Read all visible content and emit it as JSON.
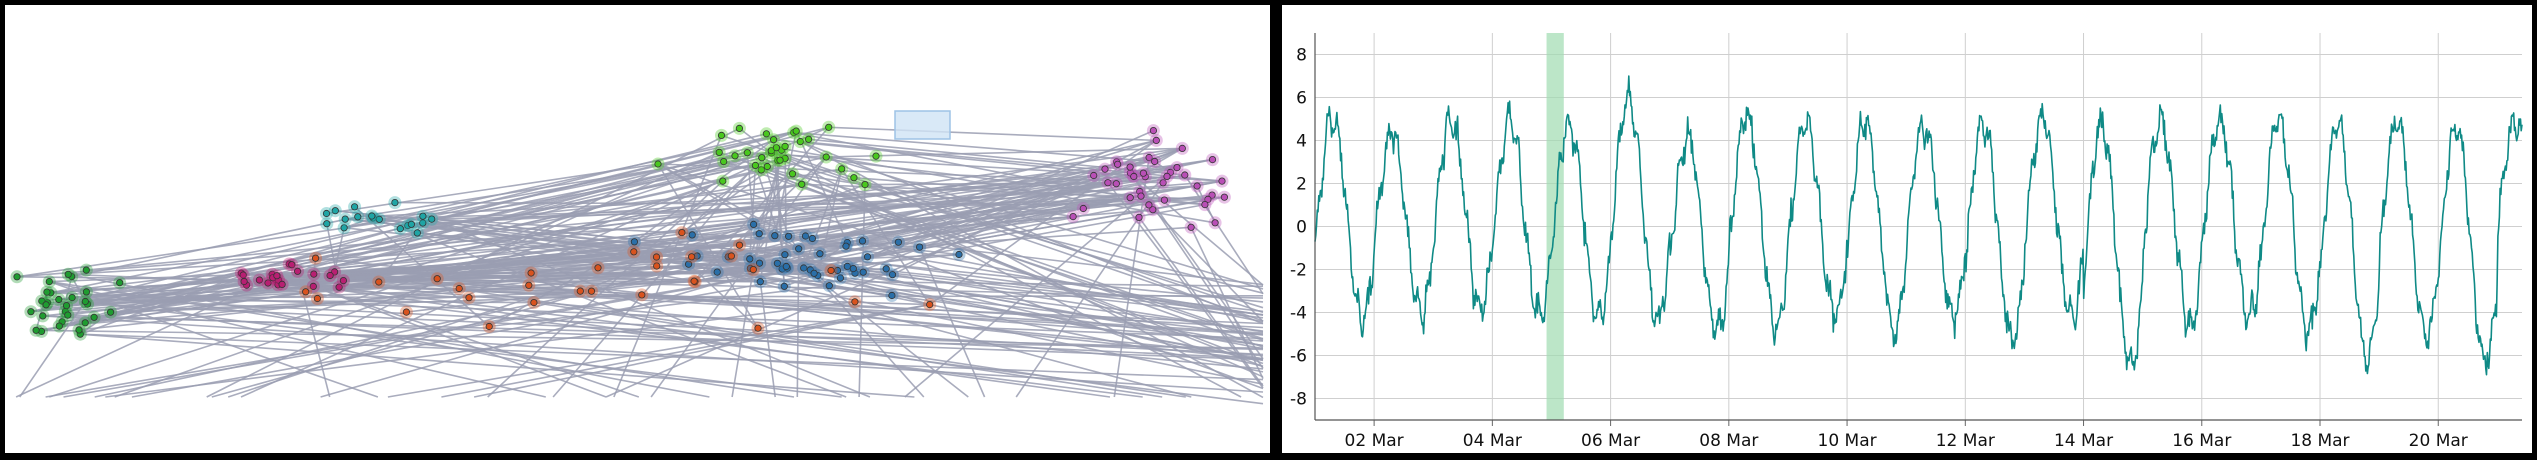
{
  "colors": {
    "edge": "#9a9db2",
    "cluster_green_bright": "#49c81e",
    "cluster_green_dark": "#1f9c30",
    "cluster_teal": "#1fa5a5",
    "cluster_blue": "#2a6fa8",
    "cluster_purple": "#b94fb6",
    "cluster_magenta": "#b81f72",
    "cluster_orange": "#d9531e",
    "series": "#0f8a86",
    "highlight": "#9fdcb0",
    "grid": "#cfcfcf",
    "selection_box": "#cfe3f5"
  },
  "network": {
    "node_icon": "circle-node",
    "clusters": [
      "green-bright",
      "green-dark",
      "teal",
      "blue",
      "purple",
      "magenta",
      "orange"
    ]
  },
  "chart_data": {
    "type": "line",
    "title": "",
    "xlabel": "",
    "ylabel": "",
    "x_ticks": [
      "02 Mar",
      "04 Mar",
      "06 Mar",
      "08 Mar",
      "10 Mar",
      "12 Mar",
      "14 Mar",
      "16 Mar",
      "18 Mar",
      "20 Mar"
    ],
    "x_range": [
      "2024-03-01",
      "2024-03-21 10:00"
    ],
    "ylim": [
      -9,
      9
    ],
    "y_ticks": [
      8,
      6,
      4,
      2,
      0,
      -2,
      -4,
      -6,
      -8
    ],
    "grid": true,
    "period_days": 1,
    "highlight_range": [
      "2024-03-04 22:00",
      "2024-03-05 05:00"
    ],
    "series": [
      {
        "x": [
          "2024-03-01 00:00",
          "2024-03-01 12:00",
          "2024-03-02 00:00",
          "2024-03-02 12:00",
          "2024-03-03 00:00",
          "2024-03-03 12:00",
          "2024-03-04 00:00",
          "2024-03-04 12:00",
          "2024-03-05 00:00",
          "2024-03-05 12:00",
          "2024-03-06 00:00",
          "2024-03-06 12:00",
          "2024-03-07 00:00",
          "2024-03-07 12:00",
          "2024-03-08 00:00",
          "2024-03-08 12:00",
          "2024-03-09 00:00",
          "2024-03-09 12:00",
          "2024-03-10 00:00",
          "2024-03-10 12:00",
          "2024-03-11 00:00",
          "2024-03-11 12:00",
          "2024-03-12 00:00",
          "2024-03-12 12:00",
          "2024-03-13 00:00",
          "2024-03-13 12:00",
          "2024-03-14 00:00",
          "2024-03-14 12:00",
          "2024-03-15 00:00",
          "2024-03-15 12:00",
          "2024-03-16 00:00",
          "2024-03-16 12:00",
          "2024-03-17 00:00",
          "2024-03-17 12:00",
          "2024-03-18 00:00",
          "2024-03-18 12:00",
          "2024-03-19 00:00",
          "2024-03-19 12:00",
          "2024-03-20 00:00",
          "2024-03-20 12:00",
          "2024-03-21 00:00",
          "2024-03-21 10:00"
        ],
        "peaks": [
          6.0,
          5.3,
          6.0,
          6.0,
          5.8,
          7.2,
          5.1,
          6.3,
          5.9,
          6.0,
          5.8,
          6.0,
          6.0,
          6.0,
          6.0,
          6.0,
          6.0,
          6.0,
          6.0,
          6.0,
          5.9
        ],
        "troughs": [
          -5.3,
          -5.0,
          -4.8,
          -5.2,
          -5.2,
          -5.5,
          -5.8,
          -5.7,
          -5.2,
          -5.8,
          -5.2,
          -6.3,
          -5.3,
          -7.8,
          -5.7,
          -5.3,
          -6.0,
          -7.4,
          -6.2,
          -7.5,
          -4.0
        ]
      }
    ]
  }
}
